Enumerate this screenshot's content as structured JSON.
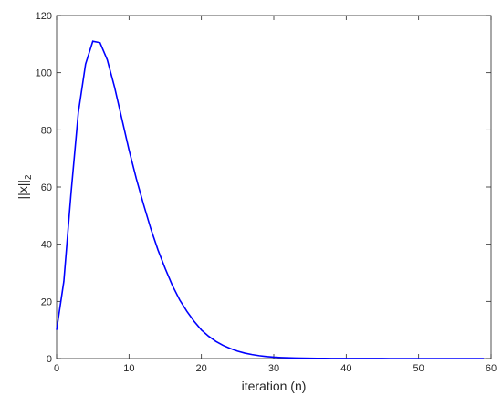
{
  "chart_data": {
    "type": "line",
    "x_label": "iteration (n)",
    "y_label": {
      "text": "||x||",
      "subscript": "2"
    },
    "x": [
      0,
      1,
      2,
      3,
      4,
      5,
      6,
      7,
      8,
      9,
      10,
      11,
      12,
      13,
      14,
      15,
      16,
      17,
      18,
      19,
      20,
      21,
      22,
      23,
      24,
      25,
      26,
      27,
      28,
      29,
      30,
      31,
      32,
      33,
      34,
      35,
      36,
      37,
      38,
      39,
      40,
      41,
      42,
      43,
      44,
      45,
      46,
      47,
      48,
      49,
      50,
      51,
      52,
      53,
      54,
      55,
      56,
      57,
      58,
      59
    ],
    "series": [
      {
        "color": "#0000ff",
        "values": [
          10,
          27,
          58,
          86,
          103,
          111,
          110.5,
          104.5,
          95,
          84,
          73,
          63,
          54,
          45.5,
          38,
          31.5,
          25.5,
          20.5,
          16.5,
          13,
          10,
          7.8,
          6,
          4.6,
          3.5,
          2.6,
          1.9,
          1.4,
          1.0,
          0.7,
          0.5,
          0.36,
          0.26,
          0.19,
          0.13,
          0.1,
          0.07,
          0.05,
          0.04,
          0.03,
          0.02,
          0.01,
          0.01,
          0.01,
          0.01,
          0.01,
          0,
          0,
          0,
          0,
          0,
          0,
          0,
          0,
          0,
          0,
          0,
          0,
          0,
          0
        ]
      }
    ],
    "xlim": [
      0,
      60
    ],
    "xticks": [
      0,
      10,
      20,
      30,
      40,
      50,
      60
    ],
    "ylim": [
      0,
      120
    ],
    "yticks": [
      0,
      20,
      40,
      60,
      80,
      100,
      120
    ]
  }
}
